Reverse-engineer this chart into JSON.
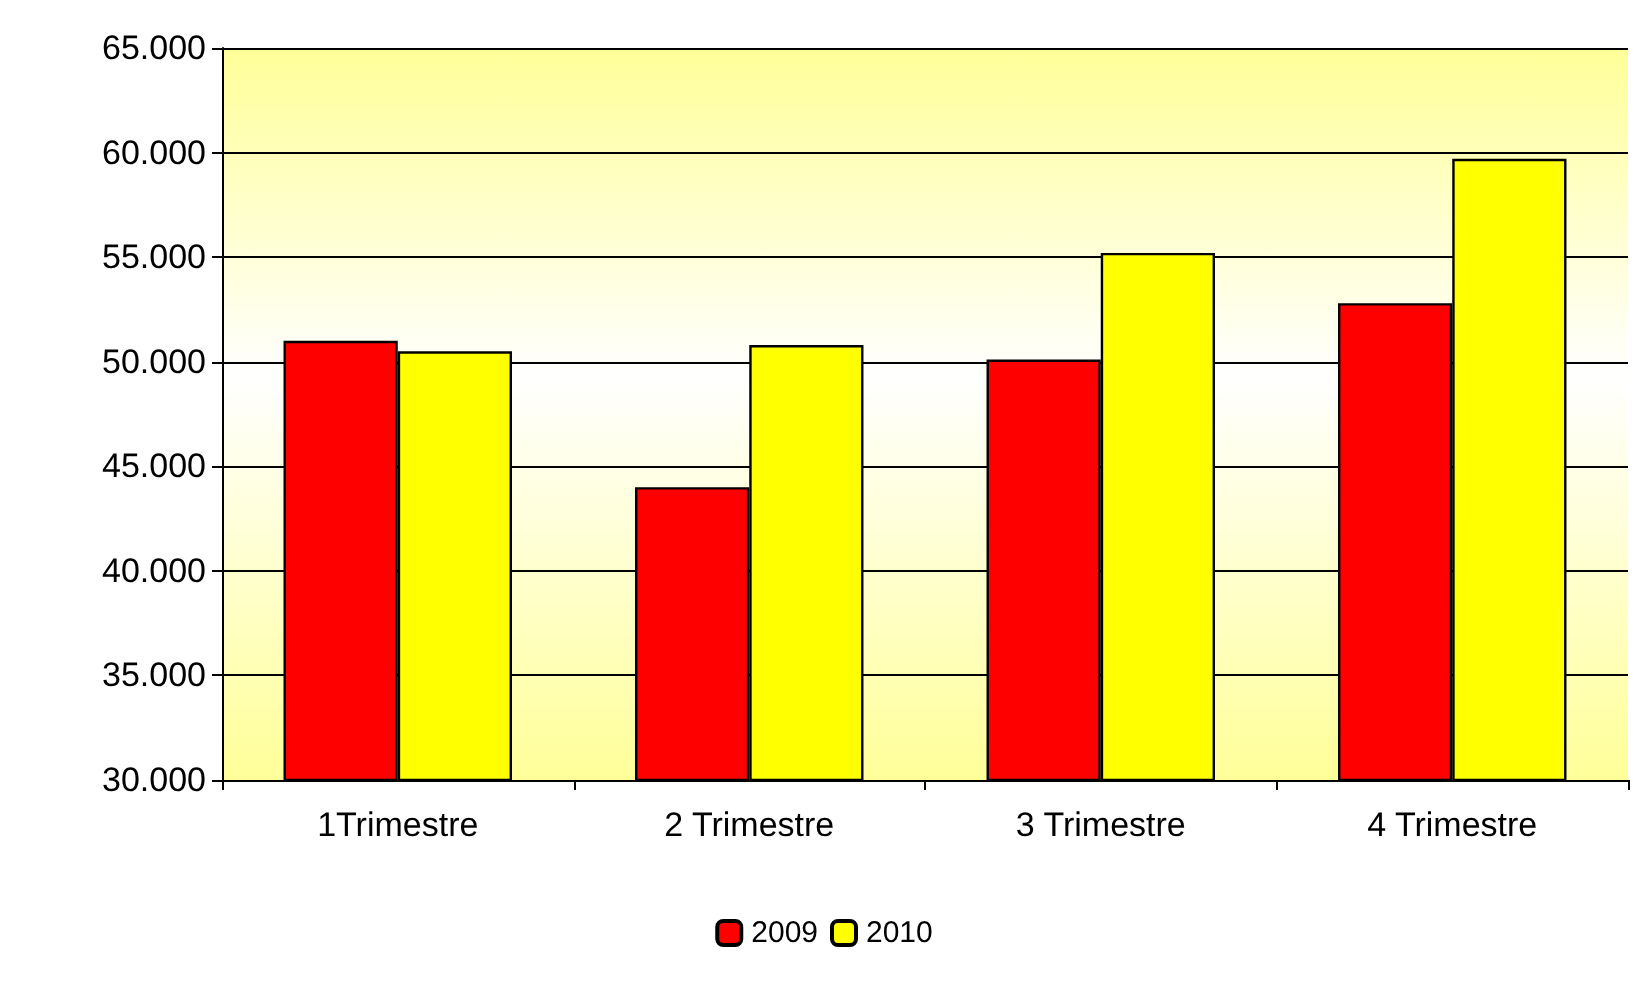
{
  "chart_data": {
    "type": "bar",
    "categories": [
      "1Trimestre",
      "2 Trimestre",
      "3 Trimestre",
      "4 Trimestre"
    ],
    "series": [
      {
        "name": "2009",
        "color": "#ff0000",
        "values": [
          51000,
          44000,
          50100,
          52800
        ]
      },
      {
        "name": "2010",
        "color": "#ffff00",
        "values": [
          50500,
          50800,
          55200,
          59700
        ]
      }
    ],
    "ylim": [
      30000,
      65000
    ],
    "yticks": [
      {
        "value": 30000,
        "label": "30.000"
      },
      {
        "value": 35000,
        "label": "35.000"
      },
      {
        "value": 40000,
        "label": "40.000"
      },
      {
        "value": 45000,
        "label": "45.000"
      },
      {
        "value": 50000,
        "label": "50.000"
      },
      {
        "value": 55000,
        "label": "55.000"
      },
      {
        "value": 60000,
        "label": "60.000"
      },
      {
        "value": 65000,
        "label": "65.000"
      }
    ],
    "grid": "y",
    "legend": "bottom"
  }
}
